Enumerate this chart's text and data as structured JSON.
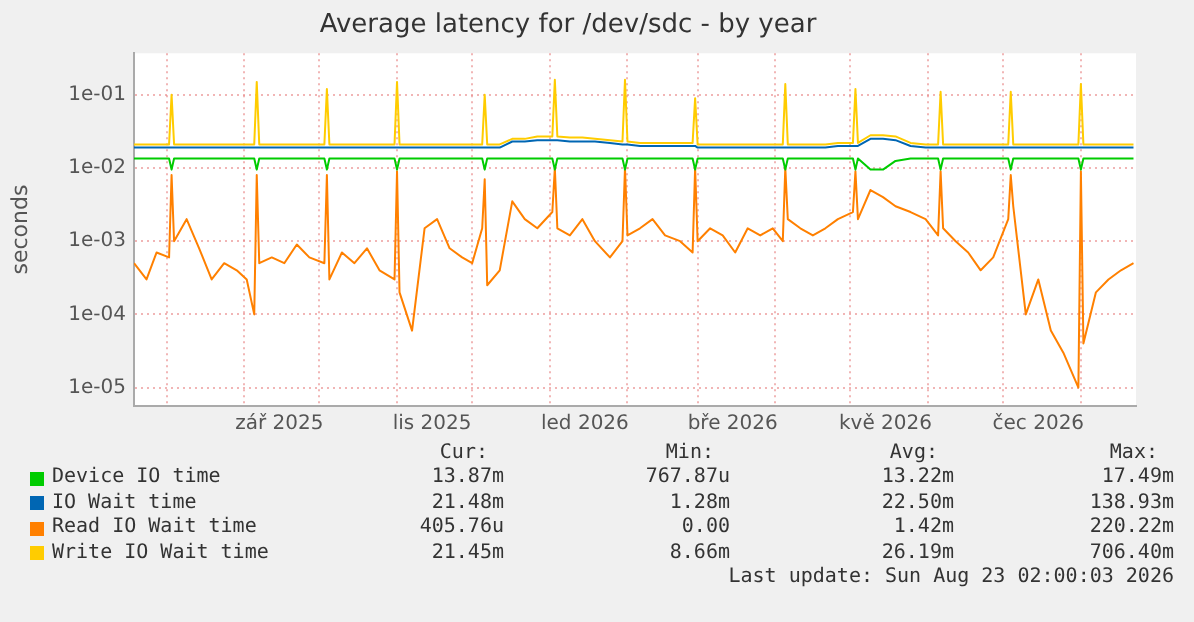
{
  "chart_data": {
    "type": "line",
    "title": "Average latency for /dev/sdc - by year",
    "ylabel": "seconds",
    "log": "y",
    "grid": true,
    "legend": "bottom",
    "marker": "none",
    "line_style": "solid",
    "xlim": [
      "2025-07-19",
      "2026-08-23"
    ],
    "xticks": [
      {
        "value": "2025-08-01",
        "label": null
      },
      {
        "value": "2025-09-01",
        "label": null
      },
      {
        "value": "2025-09-15",
        "label": "zář 2025"
      },
      {
        "value": "2025-10-01",
        "label": null
      },
      {
        "value": "2025-11-01",
        "label": null
      },
      {
        "value": "2025-11-15",
        "label": "lis 2025"
      },
      {
        "value": "2025-12-01",
        "label": null
      },
      {
        "value": "2026-01-01",
        "label": null
      },
      {
        "value": "2026-01-15",
        "label": "led 2026"
      },
      {
        "value": "2026-02-01",
        "label": null
      },
      {
        "value": "2026-03-01",
        "label": null
      },
      {
        "value": "2026-03-15",
        "label": "bře 2026"
      },
      {
        "value": "2026-04-01",
        "label": null
      },
      {
        "value": "2026-05-01",
        "label": null
      },
      {
        "value": "2026-05-15",
        "label": "kvě 2026"
      },
      {
        "value": "2026-06-01",
        "label": null
      },
      {
        "value": "2026-07-01",
        "label": null
      },
      {
        "value": "2026-07-15",
        "label": "čec 2026"
      },
      {
        "value": "2026-08-01",
        "label": null
      }
    ],
    "ylim": [
      5.6e-06,
      0.37
    ],
    "yticks": [
      {
        "value": 1e-05,
        "label": "1e-05"
      },
      {
        "value": 0.0001,
        "label": "1e-04"
      },
      {
        "value": 0.001,
        "label": "1e-03"
      },
      {
        "value": 0.01,
        "label": "1e-02"
      },
      {
        "value": 0.1,
        "label": "1e-01"
      }
    ],
    "x": [
      "2025-07-19",
      "2025-07-24",
      "2025-07-28",
      "2025-08-02",
      "2025-08-03",
      "2025-08-04",
      "2025-08-09",
      "2025-08-14",
      "2025-08-19",
      "2025-08-24",
      "2025-08-29",
      "2025-09-02",
      "2025-09-05",
      "2025-09-06",
      "2025-09-07",
      "2025-09-12",
      "2025-09-17",
      "2025-09-22",
      "2025-09-27",
      "2025-10-03",
      "2025-10-04",
      "2025-10-05",
      "2025-10-10",
      "2025-10-15",
      "2025-10-20",
      "2025-10-25",
      "2025-10-31",
      "2025-11-01",
      "2025-11-02",
      "2025-11-07",
      "2025-11-12",
      "2025-11-17",
      "2025-11-22",
      "2025-11-27",
      "2025-12-01",
      "2025-12-05",
      "2025-12-06",
      "2025-12-07",
      "2025-12-12",
      "2025-12-17",
      "2025-12-22",
      "2025-12-27",
      "2026-01-02",
      "2026-01-03",
      "2026-01-04",
      "2026-01-09",
      "2026-01-14",
      "2026-01-19",
      "2026-01-25",
      "2026-01-30",
      "2026-01-31",
      "2026-02-01",
      "2026-02-06",
      "2026-02-11",
      "2026-02-16",
      "2026-02-22",
      "2026-02-27",
      "2026-02-28",
      "2026-03-01",
      "2026-03-06",
      "2026-03-11",
      "2026-03-16",
      "2026-03-21",
      "2026-03-26",
      "2026-03-31",
      "2026-04-04",
      "2026-04-05",
      "2026-04-06",
      "2026-04-11",
      "2026-04-16",
      "2026-04-21",
      "2026-04-26",
      "2026-05-02",
      "2026-05-03",
      "2026-05-04",
      "2026-05-09",
      "2026-05-14",
      "2026-05-19",
      "2026-05-25",
      "2026-05-31",
      "2026-06-05",
      "2026-06-06",
      "2026-06-07",
      "2026-06-12",
      "2026-06-17",
      "2026-06-22",
      "2026-06-27",
      "2026-07-03",
      "2026-07-04",
      "2026-07-05",
      "2026-07-10",
      "2026-07-15",
      "2026-07-20",
      "2026-07-25",
      "2026-07-31",
      "2026-08-01",
      "2026-08-02",
      "2026-08-07",
      "2026-08-12",
      "2026-08-17",
      "2026-08-22"
    ],
    "series": [
      {
        "name": "Device IO time",
        "color": "#00cc00",
        "values": [
          0.0135,
          0.0135,
          0.0135,
          0.0135,
          0.0095,
          0.0135,
          0.0135,
          0.0135,
          0.0135,
          0.0135,
          0.0135,
          0.0135,
          0.0135,
          0.0095,
          0.0135,
          0.0135,
          0.0135,
          0.0135,
          0.0135,
          0.0135,
          0.0095,
          0.0135,
          0.0135,
          0.0135,
          0.0135,
          0.0135,
          0.0135,
          0.0095,
          0.0135,
          0.0135,
          0.0135,
          0.0135,
          0.0135,
          0.0135,
          0.0135,
          0.0135,
          0.0095,
          0.0135,
          0.0135,
          0.0135,
          0.0135,
          0.0135,
          0.0135,
          0.0095,
          0.0135,
          0.0135,
          0.0135,
          0.0135,
          0.0135,
          0.0135,
          0.0095,
          0.0135,
          0.0135,
          0.0135,
          0.0135,
          0.0135,
          0.0135,
          0.0095,
          0.0135,
          0.0135,
          0.0135,
          0.0135,
          0.0135,
          0.0135,
          0.0135,
          0.0135,
          0.0095,
          0.0135,
          0.0135,
          0.0135,
          0.0135,
          0.0135,
          0.0135,
          0.0095,
          0.0135,
          0.0095,
          0.0095,
          0.0125,
          0.0135,
          0.0135,
          0.0135,
          0.0095,
          0.0135,
          0.0135,
          0.0135,
          0.0135,
          0.0135,
          0.0135,
          0.0095,
          0.0135,
          0.0135,
          0.0135,
          0.0135,
          0.0135,
          0.0135,
          0.0095,
          0.0135,
          0.0135,
          0.0135,
          0.0135,
          0.0135
        ]
      },
      {
        "name": "IO Wait time",
        "color": "#0066b3",
        "values": [
          0.019,
          0.019,
          0.019,
          0.019,
          0.019,
          0.019,
          0.019,
          0.019,
          0.019,
          0.019,
          0.019,
          0.019,
          0.019,
          0.019,
          0.019,
          0.019,
          0.019,
          0.019,
          0.019,
          0.019,
          0.019,
          0.019,
          0.019,
          0.019,
          0.019,
          0.019,
          0.019,
          0.019,
          0.019,
          0.019,
          0.019,
          0.019,
          0.019,
          0.019,
          0.019,
          0.019,
          0.019,
          0.019,
          0.019,
          0.023,
          0.023,
          0.024,
          0.024,
          0.024,
          0.024,
          0.023,
          0.023,
          0.023,
          0.022,
          0.021,
          0.021,
          0.021,
          0.02,
          0.02,
          0.02,
          0.02,
          0.02,
          0.02,
          0.019,
          0.019,
          0.019,
          0.019,
          0.019,
          0.019,
          0.019,
          0.019,
          0.019,
          0.019,
          0.019,
          0.019,
          0.019,
          0.02,
          0.02,
          0.02,
          0.02,
          0.025,
          0.025,
          0.024,
          0.02,
          0.019,
          0.019,
          0.019,
          0.019,
          0.019,
          0.019,
          0.019,
          0.019,
          0.019,
          0.019,
          0.019,
          0.019,
          0.019,
          0.019,
          0.019,
          0.019,
          0.019,
          0.019,
          0.019,
          0.019,
          0.019,
          0.019
        ]
      },
      {
        "name": "Read IO Wait time",
        "color": "#ff8000",
        "values": [
          0.0005,
          0.0003,
          0.0007,
          0.0006,
          0.008,
          0.001,
          0.002,
          0.0008,
          0.0003,
          0.0005,
          0.0004,
          0.0003,
          0.0001,
          0.008,
          0.0005,
          0.0006,
          0.0005,
          0.0009,
          0.0006,
          0.0005,
          0.008,
          0.0003,
          0.0007,
          0.0005,
          0.0008,
          0.0004,
          0.0003,
          0.009,
          0.0002,
          6e-05,
          0.0015,
          0.002,
          0.0008,
          0.0006,
          0.0005,
          0.0015,
          0.007,
          0.00025,
          0.0004,
          0.0035,
          0.002,
          0.0015,
          0.0025,
          0.01,
          0.0015,
          0.0012,
          0.002,
          0.001,
          0.0006,
          0.001,
          0.01,
          0.0012,
          0.0015,
          0.002,
          0.0012,
          0.001,
          0.0007,
          0.01,
          0.001,
          0.0015,
          0.0012,
          0.0007,
          0.0015,
          0.0012,
          0.0015,
          0.001,
          0.01,
          0.002,
          0.0015,
          0.0012,
          0.0015,
          0.002,
          0.0025,
          0.009,
          0.002,
          0.005,
          0.004,
          0.003,
          0.0025,
          0.002,
          0.0012,
          0.009,
          0.0015,
          0.001,
          0.0007,
          0.0004,
          0.0006,
          0.002,
          0.008,
          0.003,
          0.0001,
          0.0003,
          6e-05,
          3e-05,
          1e-05,
          0.009,
          4e-05,
          0.0002,
          0.0003,
          0.0004,
          0.0005
        ]
      },
      {
        "name": "Write IO Wait time",
        "color": "#ffcc00",
        "values": [
          0.021,
          0.021,
          0.021,
          0.021,
          0.1,
          0.021,
          0.021,
          0.021,
          0.021,
          0.021,
          0.021,
          0.021,
          0.021,
          0.15,
          0.021,
          0.021,
          0.021,
          0.021,
          0.021,
          0.021,
          0.12,
          0.021,
          0.021,
          0.021,
          0.021,
          0.021,
          0.021,
          0.15,
          0.021,
          0.021,
          0.021,
          0.021,
          0.021,
          0.021,
          0.021,
          0.021,
          0.1,
          0.021,
          0.021,
          0.025,
          0.025,
          0.027,
          0.027,
          0.16,
          0.027,
          0.026,
          0.026,
          0.025,
          0.024,
          0.023,
          0.16,
          0.023,
          0.022,
          0.022,
          0.022,
          0.022,
          0.022,
          0.09,
          0.021,
          0.021,
          0.021,
          0.021,
          0.021,
          0.021,
          0.021,
          0.021,
          0.14,
          0.021,
          0.021,
          0.021,
          0.021,
          0.022,
          0.022,
          0.12,
          0.022,
          0.028,
          0.028,
          0.027,
          0.022,
          0.021,
          0.021,
          0.11,
          0.021,
          0.021,
          0.021,
          0.021,
          0.021,
          0.021,
          0.11,
          0.021,
          0.021,
          0.021,
          0.021,
          0.021,
          0.021,
          0.14,
          0.021,
          0.021,
          0.021,
          0.021,
          0.021
        ]
      }
    ],
    "annotations": [
      "Cur:",
      "Min:",
      "Avg:",
      "Max:",
      "13.87m",
      "767.87u",
      "13.22m",
      "17.49m",
      "21.48m",
      "1.28m",
      "22.50m",
      "138.93m",
      "405.76u",
      "0.00",
      "1.42m",
      "220.22m",
      "21.45m",
      "8.66m",
      "26.19m",
      "706.40m",
      "Last update: Sun Aug 23 02:00:03 2026"
    ]
  }
}
